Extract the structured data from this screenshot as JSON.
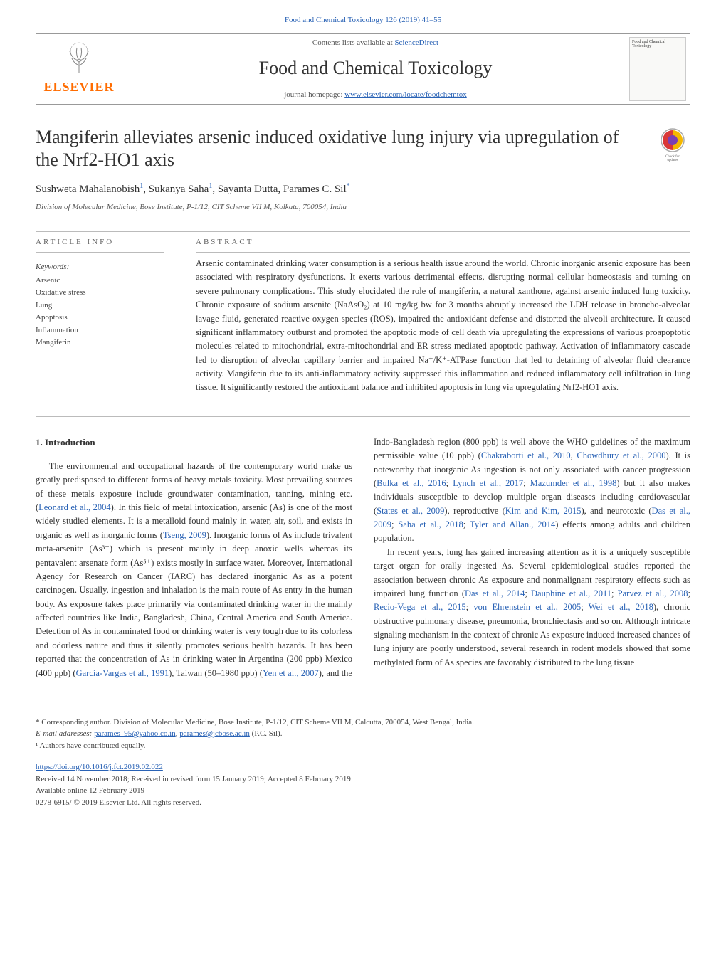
{
  "top_link": "Food and Chemical Toxicology 126 (2019) 41–55",
  "header": {
    "contents_prefix": "Contents lists available at ",
    "contents_link": "ScienceDirect",
    "journal": "Food and Chemical Toxicology",
    "homepage_prefix": "journal homepage: ",
    "homepage_link": "www.elsevier.com/locate/foodchemtox",
    "publisher": "ELSEVIER",
    "thumb": "Food and Chemical Toxicology"
  },
  "article": {
    "title": "Mangiferin alleviates arsenic induced oxidative lung injury via upregulation of the Nrf2-HO1 axis",
    "authors_html": "Sushweta Mahalanobish<sup>1</sup>, Sukanya Saha<sup>1</sup>, Sayanta Dutta, Parames C. Sil<sup>*</sup>",
    "affiliation": "Division of Molecular Medicine, Bose Institute, P-1/12, CIT Scheme VII M, Kolkata, 700054, India",
    "check_label": "Check for updates"
  },
  "info": {
    "label": "ARTICLE INFO",
    "keywords_label": "Keywords:",
    "keywords": [
      "Arsenic",
      "Oxidative stress",
      "Lung",
      "Apoptosis",
      "Inflammation",
      "Mangiferin"
    ]
  },
  "abstract": {
    "label": "ABSTRACT",
    "text": "Arsenic contaminated drinking water consumption is a serious health issue around the world. Chronic inorganic arsenic exposure has been associated with respiratory dysfunctions. It exerts various detrimental effects, disrupting normal cellular homeostasis and turning on severe pulmonary complications. This study elucidated the role of mangiferin, a natural xanthone, against arsenic induced lung toxicity. Chronic exposure of sodium arsenite (NaAsO₂) at 10 mg/kg bw for 3 months abruptly increased the LDH release in broncho-alveolar lavage fluid, generated reactive oxygen species (ROS), impaired the antioxidant defense and distorted the alveoli architecture. It caused significant inflammatory outburst and promoted the apoptotic mode of cell death via upregulating the expressions of various proapoptotic molecules related to mitochondrial, extra-mitochondrial and ER stress mediated apoptotic pathway. Activation of inflammatory cascade led to disruption of alveolar capillary barrier and impaired Na⁺/K⁺-ATPase function that led to detaining of alveolar fluid clearance activity. Mangiferin due to its anti-inflammatory activity suppressed this inflammation and reduced inflammatory cell infiltration in lung tissue. It significantly restored the antioxidant balance and inhibited apoptosis in lung via upregulating Nrf2-HO1 axis."
  },
  "introduction": {
    "heading": "1. Introduction",
    "para1": "The environmental and occupational hazards of the contemporary world make us greatly predisposed to different forms of heavy metals toxicity. Most prevailing sources of these metals exposure include groundwater contamination, tanning, mining etc. (<span class=\"cite\">Leonard et al., 2004</span>). In this field of metal intoxication, arsenic (As) is one of the most widely studied elements. It is a metalloid found mainly in water, air, soil, and exists in organic as well as inorganic forms (<span class=\"cite\">Tseng, 2009</span>). Inorganic forms of As include trivalent meta-arsenite (As³⁺) which is present mainly in deep anoxic wells whereas its pentavalent arsenate form (As⁵⁺) exists mostly in surface water. Moreover, International Agency for Research on Cancer (IARC) has declared inorganic As as a potent carcinogen. Usually, ingestion and inhalation is the main route of As entry in the human body. As exposure takes place primarily via contaminated drinking water in the mainly affected countries like India, Bangladesh, China, Central America and South America. Detection of As in contaminated food or drinking water is very tough due to its colorless and odorless nature and thus it silently promotes serious health hazards. It has been reported that the concentration of As in drinking water in Argentina (200 ppb) Mexico (400 ppb) (<span class=\"cite\">García-Vargas et al., 1991</span>), Taiwan (50–1980 ppb) (<span class=\"cite\">Yen et al., 2007</span>), and the Indo-Bangladesh region (800 ppb) is well above the WHO guidelines of the maximum permissible value (10 ppb) (<span class=\"cite\">Chakraborti et al., 2010</span>, <span class=\"cite\">Chowdhury et al., 2000</span>). It is noteworthy that inorganic As ingestion is not only associated with cancer progression (<span class=\"cite\">Bulka et al., 2016</span>; <span class=\"cite\">Lynch et al., 2017</span>; <span class=\"cite\">Mazumder et al., 1998</span>) but it also makes individuals susceptible to develop multiple organ diseases including cardiovascular (<span class=\"cite\">States et al., 2009</span>), reproductive (<span class=\"cite\">Kim and Kim, 2015</span>), and neurotoxic (<span class=\"cite\">Das et al., 2009</span>; <span class=\"cite\">Saha et al., 2018</span>; <span class=\"cite\">Tyler and Allan., 2014</span>) effects among adults and children population.",
    "para2": "In recent years, lung has gained increasing attention as it is a uniquely susceptible target organ for orally ingested As. Several epidemiological studies reported the association between chronic As exposure and nonmalignant respiratory effects such as impaired lung function (<span class=\"cite\">Das et al., 2014</span>; <span class=\"cite\">Dauphine et al., 2011</span>; <span class=\"cite\">Parvez et al., 2008</span>; <span class=\"cite\">Recio-Vega et al., 2015</span>; <span class=\"cite\">von Ehrenstein et al., 2005</span>; <span class=\"cite\">Wei et al., 2018</span>), chronic obstructive pulmonary disease, pneumonia, bronchiectasis and so on. Although intricate signaling mechanism in the context of chronic As exposure induced increased chances of lung injury are poorly understood, several research in rodent models showed that some methylated form of As species are favorably distributed to the lung tissue"
  },
  "footer": {
    "corresponding": "* Corresponding author. Division of Molecular Medicine, Bose Institute, P-1/12, CIT Scheme VII M, Calcutta, 700054, West Bengal, India.",
    "email_label": "E-mail addresses: ",
    "email1": "parames_95@yahoo.co.in",
    "email2": "parames@jcbose.ac.in",
    "email_suffix": " (P.C. Sil).",
    "note1": "¹ Authors have contributed equally.",
    "doi": "https://doi.org/10.1016/j.fct.2019.02.022",
    "received": "Received 14 November 2018; Received in revised form 15 January 2019; Accepted 8 February 2019",
    "available": "Available online 12 February 2019",
    "copyright": "0278-6915/ © 2019 Elsevier Ltd. All rights reserved."
  },
  "colors": {
    "link": "#2962b5",
    "elsevier": "#ff6c00",
    "text": "#333333",
    "muted": "#555555",
    "border": "#bbbbbb"
  }
}
